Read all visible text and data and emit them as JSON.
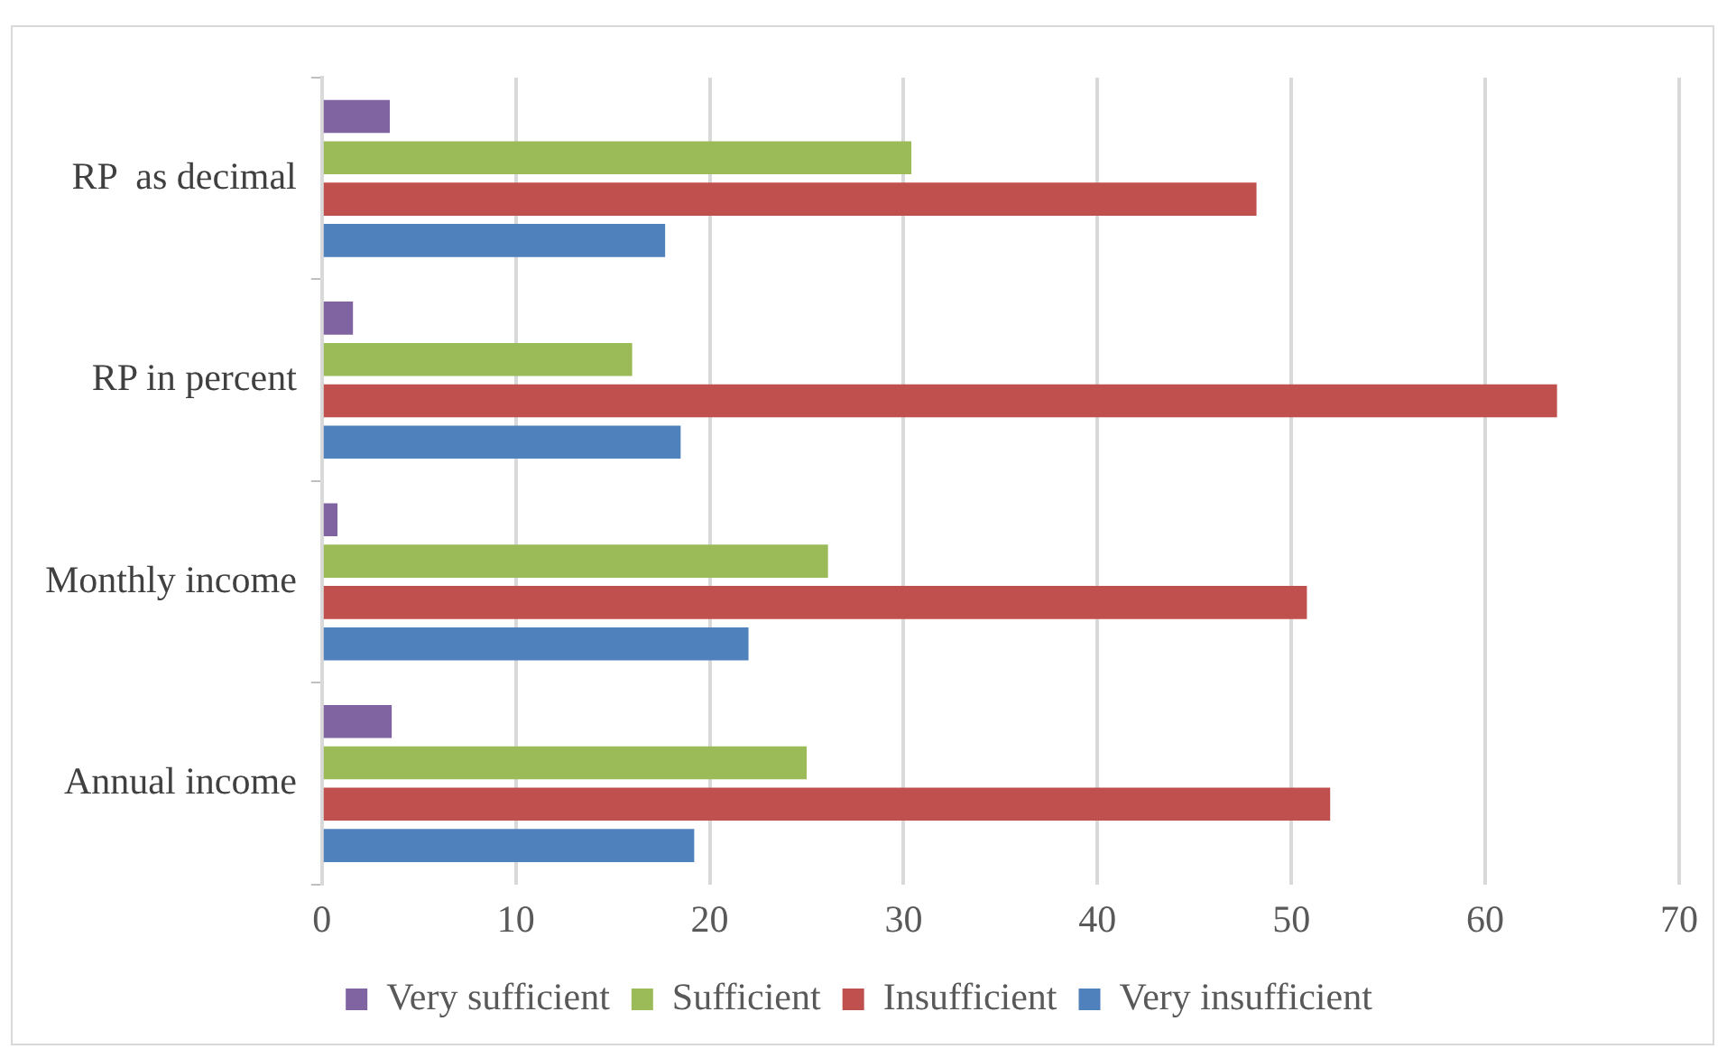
{
  "chart_data": {
    "type": "bar",
    "orientation": "horizontal",
    "categories": [
      "RP  as decimal",
      "RP in percent",
      "Monthly income",
      "Annual income"
    ],
    "series": [
      {
        "name": "Very sufficient",
        "color": "#8064a2",
        "values": [
          3.5,
          1.6,
          0.8,
          3.6
        ]
      },
      {
        "name": "Sufficient",
        "color": "#9bbb59",
        "values": [
          30.4,
          16.0,
          26.1,
          25.0
        ]
      },
      {
        "name": "Insufficient",
        "color": "#c0504d",
        "values": [
          48.2,
          63.7,
          50.8,
          52.0
        ]
      },
      {
        "name": "Very insufficient",
        "color": "#4f81bd",
        "values": [
          17.7,
          18.5,
          22.0,
          19.2
        ]
      }
    ],
    "xlim": [
      0,
      70
    ],
    "xticks": [
      0,
      10,
      20,
      30,
      40,
      50,
      60,
      70
    ],
    "grid": "x",
    "legend": "bottom"
  }
}
